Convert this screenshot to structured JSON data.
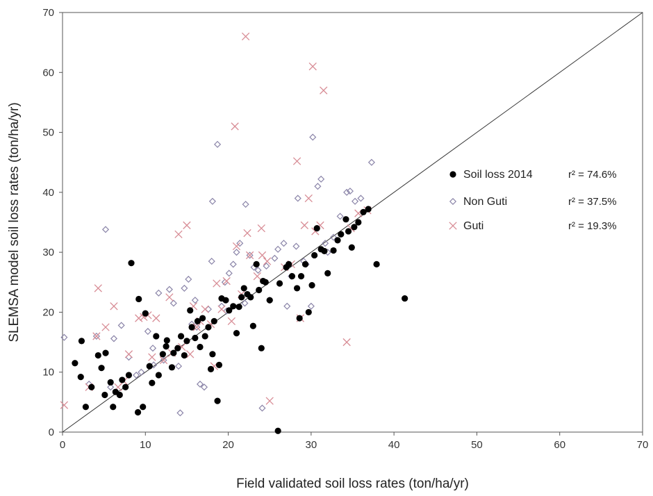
{
  "chart_data": {
    "type": "scatter",
    "title": "",
    "xlabel": "Field validated soil loss rates (ton/ha/yr)",
    "ylabel": "SLEMSA model soil loss rates (ton/ha/yr)",
    "xlim": [
      0,
      70
    ],
    "ylim": [
      0,
      70
    ],
    "xticks": [
      "0",
      "10",
      "20",
      "30",
      "40",
      "50",
      "60",
      "70"
    ],
    "yticks": [
      "0",
      "10",
      "20",
      "30",
      "40",
      "50",
      "60",
      "70"
    ],
    "grid": false,
    "legend_position": "right",
    "reference_line": {
      "x": [
        0,
        70
      ],
      "y": [
        0,
        70
      ]
    },
    "series": [
      {
        "name": "Soil loss 2014",
        "stat": "r² = 74.6%",
        "marker": "filled-circle",
        "color": "#000000",
        "points": [
          [
            1.5,
            11.5
          ],
          [
            2.2,
            9.2
          ],
          [
            2.3,
            15.2
          ],
          [
            2.8,
            4.2
          ],
          [
            3.5,
            7.5
          ],
          [
            4.3,
            12.8
          ],
          [
            4.7,
            10.7
          ],
          [
            5.1,
            6.2
          ],
          [
            5.2,
            13.2
          ],
          [
            5.8,
            8.3
          ],
          [
            6.1,
            4.2
          ],
          [
            6.4,
            6.7
          ],
          [
            6.9,
            6.2
          ],
          [
            7.2,
            8.7
          ],
          [
            7.6,
            7.5
          ],
          [
            8.0,
            9.5
          ],
          [
            8.3,
            28.2
          ],
          [
            9.1,
            3.3
          ],
          [
            9.2,
            22.2
          ],
          [
            9.7,
            4.2
          ],
          [
            10.0,
            19.8
          ],
          [
            10.5,
            11.0
          ],
          [
            10.8,
            8.2
          ],
          [
            11.3,
            16.0
          ],
          [
            11.6,
            9.5
          ],
          [
            12.1,
            13.0
          ],
          [
            12.5,
            14.3
          ],
          [
            12.6,
            15.3
          ],
          [
            13.2,
            10.8
          ],
          [
            13.4,
            13.2
          ],
          [
            13.9,
            14.0
          ],
          [
            14.3,
            16.0
          ],
          [
            14.7,
            12.8
          ],
          [
            15.0,
            15.2
          ],
          [
            15.4,
            20.3
          ],
          [
            15.6,
            17.5
          ],
          [
            16.0,
            15.7
          ],
          [
            16.3,
            18.5
          ],
          [
            16.6,
            14.2
          ],
          [
            16.9,
            19.0
          ],
          [
            17.2,
            16.0
          ],
          [
            17.6,
            17.5
          ],
          [
            17.9,
            10.5
          ],
          [
            18.1,
            13.0
          ],
          [
            18.3,
            18.5
          ],
          [
            18.7,
            5.2
          ],
          [
            18.9,
            11.2
          ],
          [
            19.2,
            22.3
          ],
          [
            19.7,
            22.0
          ],
          [
            20.1,
            20.3
          ],
          [
            20.6,
            21.0
          ],
          [
            21.0,
            16.5
          ],
          [
            21.3,
            20.9
          ],
          [
            21.6,
            22.5
          ],
          [
            21.9,
            24.0
          ],
          [
            22.3,
            23.0
          ],
          [
            22.7,
            22.5
          ],
          [
            23.0,
            17.7
          ],
          [
            23.4,
            28.0
          ],
          [
            23.7,
            23.7
          ],
          [
            24.0,
            14.0
          ],
          [
            24.2,
            25.2
          ],
          [
            24.5,
            25.0
          ],
          [
            25.0,
            22.0
          ],
          [
            26.0,
            0.2
          ],
          [
            26.2,
            24.8
          ],
          [
            27.0,
            27.5
          ],
          [
            27.3,
            28.0
          ],
          [
            27.7,
            26.0
          ],
          [
            28.3,
            24.0
          ],
          [
            28.6,
            19.0
          ],
          [
            28.8,
            26.0
          ],
          [
            29.3,
            28.0
          ],
          [
            29.7,
            20.0
          ],
          [
            30.1,
            24.5
          ],
          [
            30.4,
            29.5
          ],
          [
            30.7,
            34.0
          ],
          [
            31.2,
            30.5
          ],
          [
            31.6,
            30.2
          ],
          [
            32.0,
            26.5
          ],
          [
            32.7,
            30.3
          ],
          [
            33.2,
            32.0
          ],
          [
            33.6,
            33.0
          ],
          [
            34.2,
            35.5
          ],
          [
            34.5,
            33.5
          ],
          [
            34.9,
            30.8
          ],
          [
            35.2,
            34.2
          ],
          [
            35.7,
            35.0
          ],
          [
            36.3,
            36.7
          ],
          [
            36.9,
            37.2
          ],
          [
            37.9,
            28.0
          ],
          [
            41.3,
            22.3
          ]
        ]
      },
      {
        "name": "Non Guti",
        "stat": "r² = 37.5%",
        "marker": "open-diamond",
        "color": "#8a84a8",
        "points": [
          [
            0.2,
            15.8
          ],
          [
            3.2,
            8.0
          ],
          [
            4.1,
            16.0
          ],
          [
            5.2,
            33.8
          ],
          [
            5.8,
            7.5
          ],
          [
            6.2,
            15.6
          ],
          [
            7.1,
            17.8
          ],
          [
            8.0,
            12.5
          ],
          [
            8.9,
            9.5
          ],
          [
            9.5,
            10.0
          ],
          [
            10.3,
            16.8
          ],
          [
            10.9,
            14.0
          ],
          [
            11.6,
            23.2
          ],
          [
            12.9,
            23.8
          ],
          [
            13.4,
            21.5
          ],
          [
            14.0,
            11.0
          ],
          [
            14.2,
            3.2
          ],
          [
            14.7,
            24.0
          ],
          [
            15.2,
            25.5
          ],
          [
            15.6,
            18.0
          ],
          [
            16.0,
            22.0
          ],
          [
            16.6,
            8.0
          ],
          [
            17.1,
            7.5
          ],
          [
            17.6,
            20.5
          ],
          [
            18.0,
            28.5
          ],
          [
            18.1,
            38.5
          ],
          [
            18.7,
            48.0
          ],
          [
            19.2,
            21.0
          ],
          [
            19.6,
            25.0
          ],
          [
            20.1,
            26.5
          ],
          [
            20.6,
            28.0
          ],
          [
            21.0,
            30.0
          ],
          [
            21.4,
            31.5
          ],
          [
            22.0,
            21.5
          ],
          [
            22.1,
            38.0
          ],
          [
            22.6,
            29.5
          ],
          [
            23.1,
            27.5
          ],
          [
            23.6,
            27.0
          ],
          [
            24.1,
            4.0
          ],
          [
            24.6,
            27.7
          ],
          [
            25.0,
            22.0
          ],
          [
            25.6,
            29.0
          ],
          [
            26.0,
            30.5
          ],
          [
            26.7,
            31.5
          ],
          [
            27.1,
            21.0
          ],
          [
            27.6,
            26.0
          ],
          [
            28.2,
            31.0
          ],
          [
            28.4,
            39.0
          ],
          [
            29.1,
            28.5
          ],
          [
            29.4,
            28.0
          ],
          [
            30.0,
            21.0
          ],
          [
            30.2,
            49.2
          ],
          [
            30.8,
            41.0
          ],
          [
            31.2,
            42.2
          ],
          [
            31.7,
            31.5
          ],
          [
            32.0,
            30.0
          ],
          [
            32.7,
            32.5
          ],
          [
            33.5,
            36.0
          ],
          [
            34.3,
            40.0
          ],
          [
            34.7,
            40.2
          ],
          [
            35.3,
            38.5
          ],
          [
            36.0,
            39.0
          ],
          [
            37.3,
            45.0
          ],
          [
            11.0,
            11.2
          ],
          [
            12.2,
            12.0
          ],
          [
            16.2,
            17.5
          ],
          [
            19.8,
            20.2
          ]
        ]
      },
      {
        "name": "Guti",
        "stat": "r² = 19.3%",
        "marker": "cross",
        "color": "#d88d96",
        "points": [
          [
            0.2,
            4.5
          ],
          [
            3.2,
            7.5
          ],
          [
            4.1,
            16.0
          ],
          [
            4.3,
            24.0
          ],
          [
            5.2,
            17.5
          ],
          [
            6.2,
            21.0
          ],
          [
            6.7,
            7.5
          ],
          [
            7.4,
            8.5
          ],
          [
            8.0,
            13.0
          ],
          [
            9.2,
            19.0
          ],
          [
            9.8,
            19.2
          ],
          [
            10.3,
            19.5
          ],
          [
            10.8,
            12.5
          ],
          [
            11.3,
            19.0
          ],
          [
            12.9,
            22.5
          ],
          [
            13.2,
            13.2
          ],
          [
            14.0,
            33.0
          ],
          [
            14.4,
            14.2
          ],
          [
            15.0,
            34.5
          ],
          [
            15.4,
            13.0
          ],
          [
            15.8,
            21.0
          ],
          [
            16.2,
            17.5
          ],
          [
            17.2,
            20.5
          ],
          [
            17.9,
            18.0
          ],
          [
            18.3,
            11.0
          ],
          [
            18.6,
            24.8
          ],
          [
            19.2,
            20.5
          ],
          [
            19.8,
            25.2
          ],
          [
            20.4,
            18.5
          ],
          [
            20.8,
            51.0
          ],
          [
            21.0,
            31.0
          ],
          [
            21.6,
            23.0
          ],
          [
            22.1,
            66.0
          ],
          [
            22.3,
            33.2
          ],
          [
            22.6,
            29.5
          ],
          [
            23.5,
            26.0
          ],
          [
            24.0,
            34.0
          ],
          [
            24.1,
            29.5
          ],
          [
            24.7,
            28.5
          ],
          [
            25.0,
            5.2
          ],
          [
            27.6,
            28.0
          ],
          [
            28.3,
            45.2
          ],
          [
            28.7,
            19.0
          ],
          [
            29.2,
            34.5
          ],
          [
            29.7,
            39.0
          ],
          [
            30.2,
            61.0
          ],
          [
            30.5,
            33.5
          ],
          [
            31.1,
            34.5
          ],
          [
            31.5,
            57.0
          ],
          [
            34.3,
            15.0
          ],
          [
            34.8,
            34.0
          ],
          [
            35.7,
            36.5
          ],
          [
            36.8,
            37.0
          ],
          [
            12.2,
            12.0
          ],
          [
            16.6,
            18.5
          ],
          [
            26.8,
            27.5
          ]
        ]
      }
    ]
  }
}
